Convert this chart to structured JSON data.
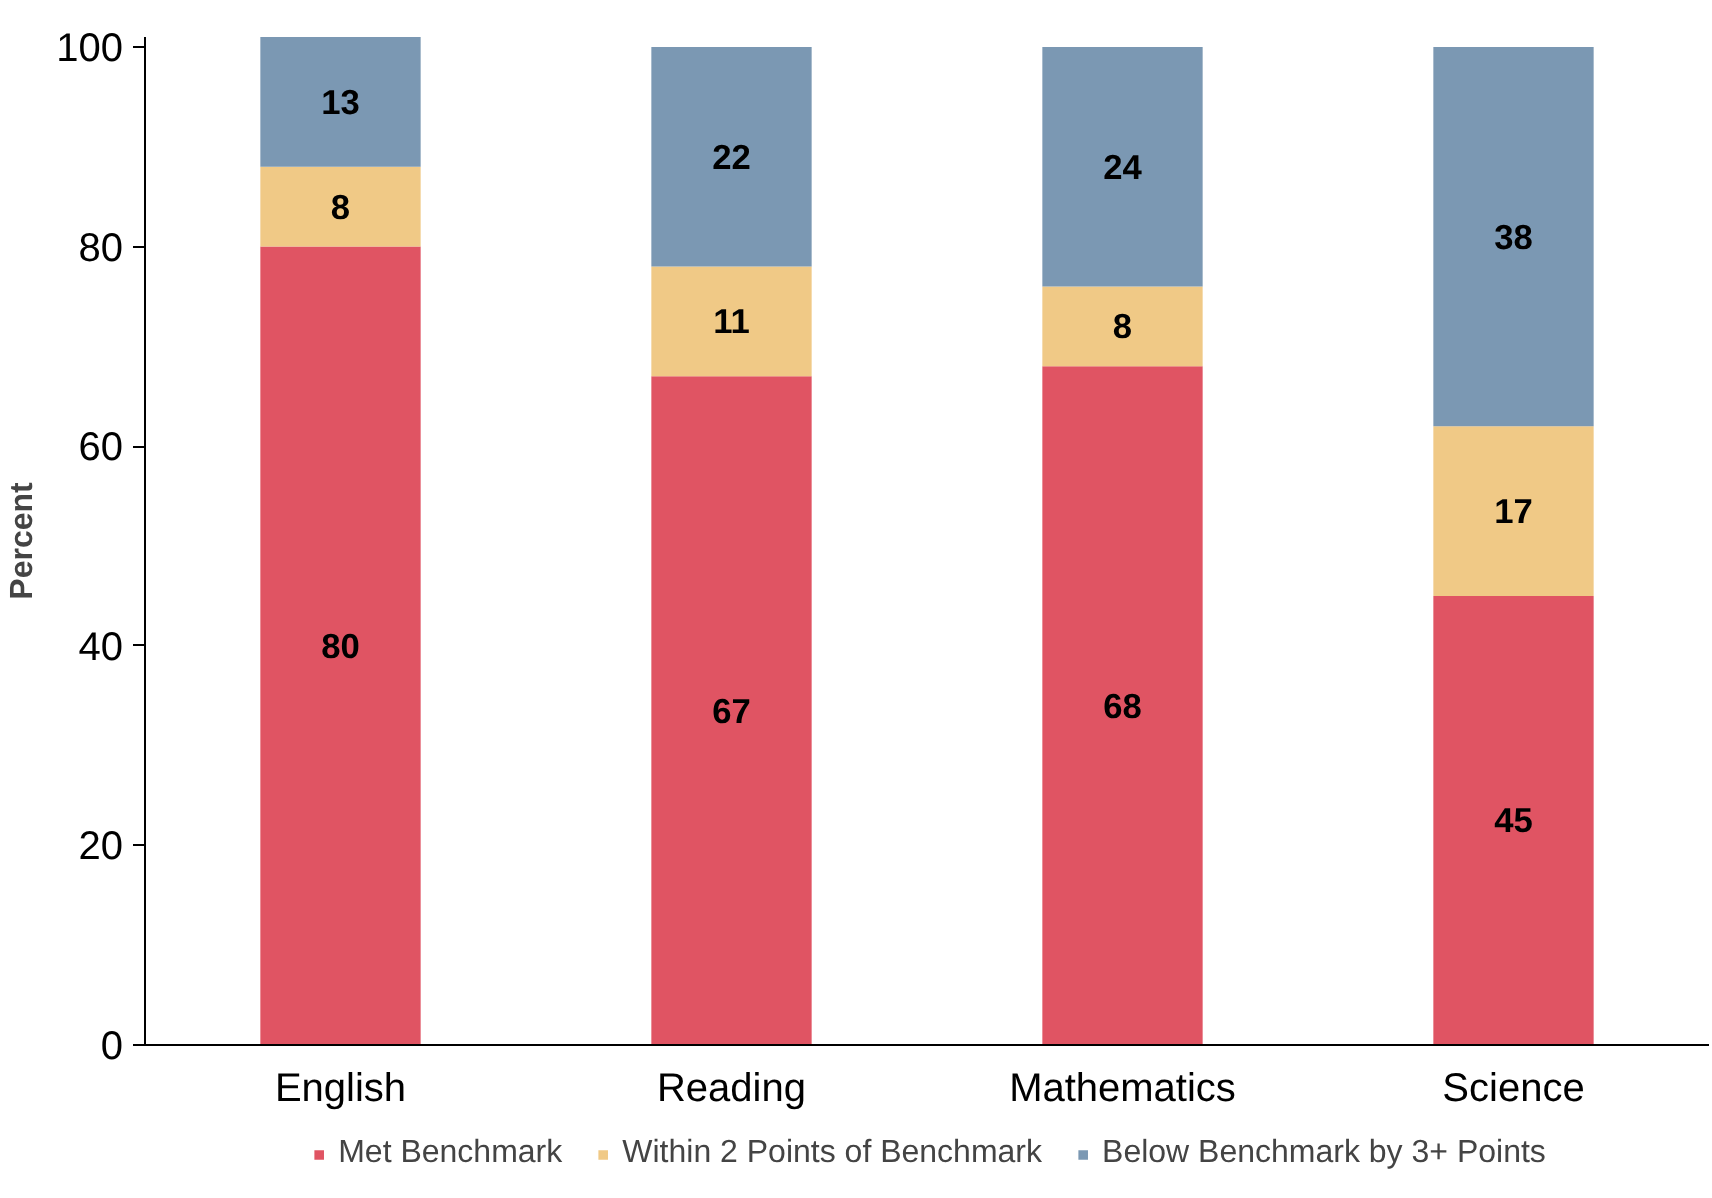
{
  "chart_data": {
    "type": "bar",
    "stacked": true,
    "ylabel": "Percent",
    "categories": [
      "English",
      "Reading",
      "Mathematics",
      "Science"
    ],
    "series": [
      {
        "name": "Met Benchmark",
        "color": "#e05463",
        "values": [
          80,
          67,
          68,
          45
        ]
      },
      {
        "name": "Within 2 Points of Benchmark",
        "color": "#f0c986",
        "values": [
          8,
          11,
          8,
          17
        ]
      },
      {
        "name": "Below Benchmark by 3+ Points",
        "color": "#7b98b3",
        "values": [
          13,
          22,
          24,
          38
        ]
      }
    ],
    "ylim": [
      0,
      101
    ],
    "yticks": [
      0,
      20,
      40,
      60,
      80,
      100
    ],
    "data_labels": true,
    "grid": false,
    "legend": "bottom"
  }
}
